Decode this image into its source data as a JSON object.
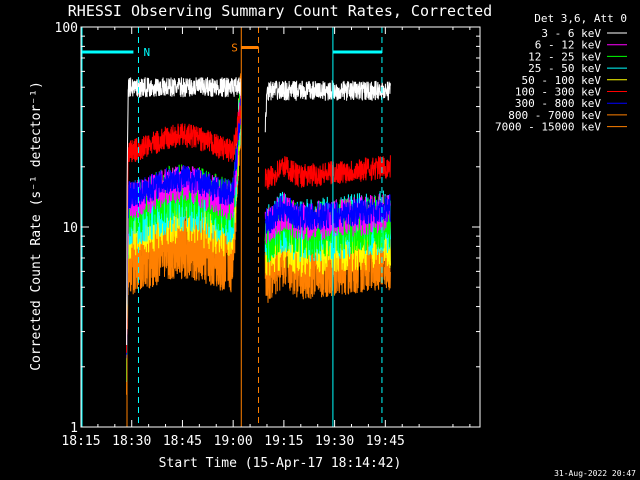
{
  "chart_data": {
    "type": "line",
    "title": "RHESSI Observing Summary Count Rates, Corrected",
    "xlabel": "Start Time (15-Apr-17 18:14:42)",
    "ylabel": "Corrected Count Rate (s⁻¹ detector⁻¹)",
    "yscale": "log",
    "ylim": [
      1,
      100
    ],
    "xlim_min": [
      15,
      133
    ],
    "x_tick_labels": [
      "18:15",
      "18:30",
      "18:45",
      "19:00",
      "19:15",
      "19:30",
      "19:45"
    ],
    "x_tick_values_min": [
      15,
      30,
      45,
      60,
      75,
      90,
      105
    ],
    "y_tick_labels": [
      "1",
      "10",
      "100"
    ],
    "y_tick_values": [
      1,
      10,
      100
    ],
    "legend_title": "Det 3,6, Att 0",
    "legend_placement": "right",
    "series": [
      {
        "name": "3 - 6 keV",
        "color": "#ffffff",
        "level_a": 50,
        "level_b": 48,
        "noise": 0.05
      },
      {
        "name": "6 - 12 keV",
        "color": "#ff00ff",
        "level_a": 13,
        "level_b": 10,
        "noise": 0.1
      },
      {
        "name": "12 - 25 keV",
        "color": "#00ff00",
        "level_a": 12,
        "level_b": 9,
        "noise": 0.14
      },
      {
        "name": "25 - 50 keV",
        "color": "#00ffff",
        "level_a": 11,
        "level_b": 9,
        "noise": 0.16
      },
      {
        "name": "50 - 100 keV",
        "color": "#ffff00",
        "level_a": 10,
        "level_b": 8,
        "noise": 0.18
      },
      {
        "name": "100 - 300 keV",
        "color": "#ff0000",
        "level_a": 23,
        "level_b": 17,
        "noise": 0.06
      },
      {
        "name": "300 - 800 keV",
        "color": "#0000ff",
        "level_a": 14,
        "level_b": 10.5,
        "noise": 0.07
      },
      {
        "name": "800 - 7000 keV",
        "color": "#ff8000",
        "level_a": 7,
        "level_b": 6.5,
        "noise": 0.2
      },
      {
        "name": "7000 - 15000 keV",
        "color": "#ff8000",
        "level_a": 7,
        "level_b": 6.5,
        "noise": 0.2
      }
    ],
    "data_gaps_min": [
      [
        19.5,
        28.5
      ],
      [
        62.3,
        69.5
      ],
      [
        106.5,
        133
      ]
    ],
    "markers": [
      {
        "label": "N",
        "color": "#00ffff",
        "start_min": 15,
        "end_min": 30.5,
        "bar_y": 75,
        "night_a_end": 32,
        "night_b_start": 89.5,
        "night_b_end": 104
      },
      {
        "label": "S",
        "color": "#ff8000",
        "start_min": 62.4,
        "end_min": 67.5,
        "bar_y": 79
      }
    ]
  },
  "footer_date": "31-Aug-2022 20:47"
}
